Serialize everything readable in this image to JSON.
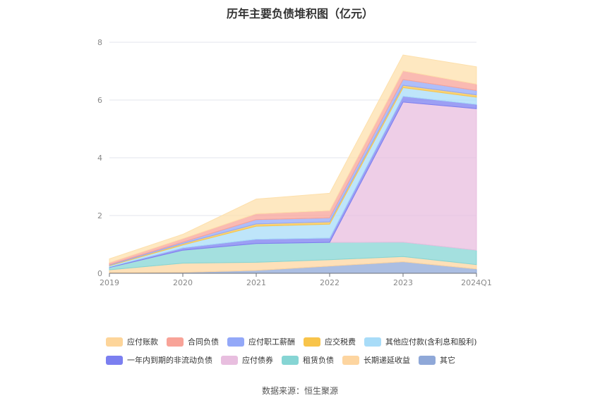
{
  "title": "历年主要负债堆积图（亿元）",
  "source": "数据来源：恒生聚源",
  "chart_data": {
    "type": "area",
    "stacked": true,
    "categories": [
      "2019",
      "2020",
      "2021",
      "2022",
      "2023",
      "2024Q1"
    ],
    "ylim": [
      0,
      8
    ],
    "yticks": [
      0,
      2,
      4,
      6,
      8
    ],
    "grid": true,
    "legend_position": "bottom",
    "series": [
      {
        "name": "其它",
        "color": "#8fa8d8",
        "values": [
          0.02,
          0.03,
          0.1,
          0.25,
          0.4,
          0.15
        ]
      },
      {
        "name": "长期递延收益",
        "color": "#fdd5a0",
        "values": [
          0.1,
          0.32,
          0.28,
          0.22,
          0.18,
          0.15
        ]
      },
      {
        "name": "租赁负债",
        "color": "#86d5d4",
        "values": [
          0.08,
          0.45,
          0.65,
          0.6,
          0.5,
          0.5
        ]
      },
      {
        "name": "应付债券",
        "color": "#e8bedf",
        "values": [
          0.0,
          0.0,
          0.0,
          0.0,
          4.85,
          4.9
        ]
      },
      {
        "name": "一年内到期的非流动负债",
        "color": "#7b7ff0",
        "values": [
          0.02,
          0.08,
          0.15,
          0.15,
          0.2,
          0.15
        ]
      },
      {
        "name": "其他应付款(含利息和股利)",
        "color": "#a8dcf8",
        "values": [
          0.04,
          0.1,
          0.45,
          0.48,
          0.3,
          0.25
        ]
      },
      {
        "name": "应交税费",
        "color": "#f8c44a",
        "values": [
          0.02,
          0.05,
          0.08,
          0.08,
          0.08,
          0.08
        ]
      },
      {
        "name": "应付职工薪酬",
        "color": "#93a8f8",
        "values": [
          0.02,
          0.05,
          0.15,
          0.14,
          0.2,
          0.15
        ]
      },
      {
        "name": "合同负债",
        "color": "#f8a398",
        "values": [
          0.07,
          0.12,
          0.2,
          0.25,
          0.3,
          0.22
        ]
      },
      {
        "name": "应付账款",
        "color": "#fde0ac",
        "values": [
          0.13,
          0.15,
          0.51,
          0.6,
          0.55,
          0.6
        ]
      }
    ]
  },
  "legend_rows": [
    [
      {
        "label": "应付账款",
        "color": "#fdd59a"
      },
      {
        "label": "合同负债",
        "color": "#f8a398"
      },
      {
        "label": "应付职工薪酬",
        "color": "#93a8f8"
      },
      {
        "label": "应交税费",
        "color": "#f8c44a"
      },
      {
        "label": "其他应付款(含利息和股利)",
        "color": "#a8dcf8"
      }
    ],
    [
      {
        "label": "一年内到期的非流动负债",
        "color": "#7b7ff0"
      },
      {
        "label": "应付债券",
        "color": "#e8bedf"
      },
      {
        "label": "租赁负债",
        "color": "#86d5d4"
      },
      {
        "label": "长期递延收益",
        "color": "#fdd5a0"
      },
      {
        "label": "其它",
        "color": "#8fa8d8"
      }
    ]
  ]
}
